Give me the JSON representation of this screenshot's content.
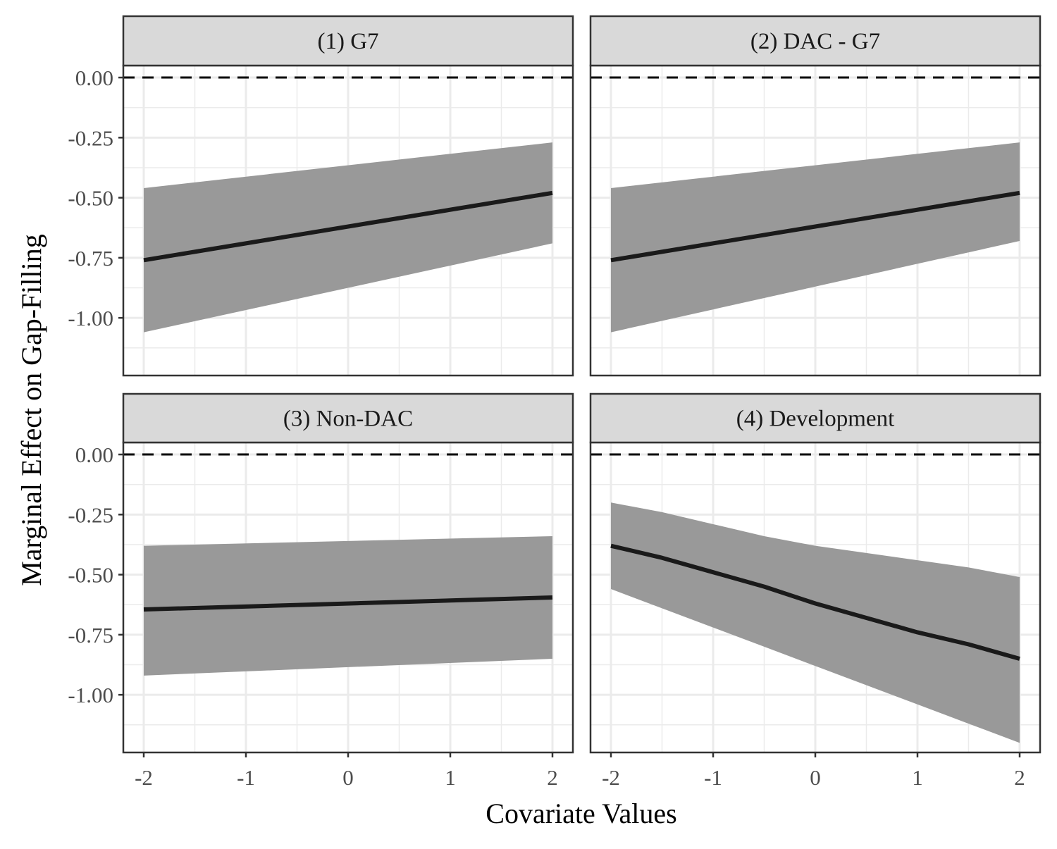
{
  "xlabel": "Covariate Values",
  "ylabel": "Marginal Effect on Gap-Filling",
  "colors": {
    "ribbon": "#999999",
    "line": "#1a1a1a",
    "strip_fill": "#d9d9d9",
    "grid": "#ebebeb",
    "border": "#333333",
    "reference": "#000000"
  },
  "chart_data": [
    {
      "type": "line",
      "title": "(1) G7",
      "x": [
        -2,
        2
      ],
      "fit": [
        -0.76,
        -0.48
      ],
      "lower": [
        -1.06,
        -0.69
      ],
      "upper": [
        -0.46,
        -0.27
      ],
      "reference_line": 0,
      "xlim": [
        -2.2,
        2.2
      ],
      "ylim": [
        -1.24,
        0.05
      ],
      "x_ticks": [
        -2,
        -1,
        0,
        1,
        2
      ],
      "y_ticks": [
        0,
        -0.25,
        -0.5,
        -0.75,
        -1
      ],
      "x_tick_labels": [
        "-2",
        "-1",
        "0",
        "1",
        "2"
      ],
      "y_tick_labels": [
        "0.00",
        "-0.25",
        "-0.50",
        "-0.75",
        "-1.00"
      ]
    },
    {
      "type": "line",
      "title": "(2) DAC - G7",
      "x": [
        -2,
        2
      ],
      "fit": [
        -0.76,
        -0.48
      ],
      "lower": [
        -1.06,
        -0.68
      ],
      "upper": [
        -0.46,
        -0.27
      ],
      "reference_line": 0,
      "xlim": [
        -2.2,
        2.2
      ],
      "ylim": [
        -1.24,
        0.05
      ],
      "x_ticks": [
        -2,
        -1,
        0,
        1,
        2
      ],
      "y_ticks": [
        0,
        -0.25,
        -0.5,
        -0.75,
        -1
      ],
      "x_tick_labels": [
        "-2",
        "-1",
        "0",
        "1",
        "2"
      ],
      "y_tick_labels": [
        "0.00",
        "-0.25",
        "-0.50",
        "-0.75",
        "-1.00"
      ]
    },
    {
      "type": "line",
      "title": "(3) Non-DAC",
      "x": [
        -2,
        2
      ],
      "fit": [
        -0.645,
        -0.595
      ],
      "lower": [
        -0.92,
        -0.85
      ],
      "upper": [
        -0.38,
        -0.34
      ],
      "reference_line": 0,
      "xlim": [
        -2.2,
        2.2
      ],
      "ylim": [
        -1.24,
        0.05
      ],
      "x_ticks": [
        -2,
        -1,
        0,
        1,
        2
      ],
      "y_ticks": [
        0,
        -0.25,
        -0.5,
        -0.75,
        -1
      ],
      "x_tick_labels": [
        "-2",
        "-1",
        "0",
        "1",
        "2"
      ],
      "y_tick_labels": [
        "0.00",
        "-0.25",
        "-0.50",
        "-0.75",
        "-1.00"
      ]
    },
    {
      "type": "line",
      "title": "(4) Development",
      "x": [
        -2,
        -1.5,
        -1,
        -0.5,
        0,
        0.5,
        1,
        1.5,
        2
      ],
      "fit": [
        -0.38,
        -0.43,
        -0.49,
        -0.55,
        -0.62,
        -0.68,
        -0.74,
        -0.79,
        -0.85
      ],
      "lower": [
        -0.56,
        -0.64,
        -0.72,
        -0.8,
        -0.88,
        -0.96,
        -1.04,
        -1.12,
        -1.2
      ],
      "upper": [
        -0.2,
        -0.24,
        -0.29,
        -0.34,
        -0.38,
        -0.41,
        -0.44,
        -0.47,
        -0.51
      ],
      "reference_line": 0,
      "xlim": [
        -2.2,
        2.2
      ],
      "ylim": [
        -1.24,
        0.05
      ],
      "x_ticks": [
        -2,
        -1,
        0,
        1,
        2
      ],
      "y_ticks": [
        0,
        -0.25,
        -0.5,
        -0.75,
        -1
      ],
      "x_tick_labels": [
        "-2",
        "-1",
        "0",
        "1",
        "2"
      ],
      "y_tick_labels": [
        "0.00",
        "-0.25",
        "-0.50",
        "-0.75",
        "-1.00"
      ]
    }
  ]
}
